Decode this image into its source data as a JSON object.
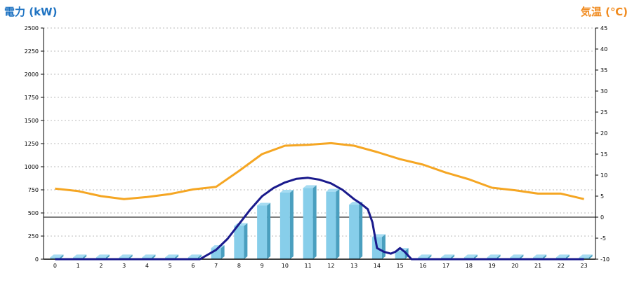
{
  "chart_data": {
    "type": "bar",
    "ylabel_left": "電力 (kW)",
    "ylabel_right": "気温 (℃)",
    "categories": [
      "0",
      "1",
      "2",
      "3",
      "4",
      "5",
      "6",
      "7",
      "8",
      "9",
      "10",
      "11",
      "12",
      "13",
      "14",
      "15",
      "16",
      "17",
      "18",
      "19",
      "20",
      "21",
      "22",
      "23"
    ],
    "y_left": {
      "min": 0,
      "max": 2500,
      "ticks": [
        "0",
        "250",
        "500",
        "750",
        "1000",
        "1250",
        "1500",
        "1750",
        "2000",
        "2250",
        "2500"
      ]
    },
    "y_right": {
      "min": -10,
      "max": 45,
      "ticks": [
        "-10",
        "-5",
        "0",
        "5",
        "10",
        "15",
        "20",
        "25",
        "30",
        "35",
        "40",
        "45"
      ]
    },
    "grid": "horizontal-dashed",
    "bars": {
      "axis": "left",
      "values": [
        20,
        20,
        20,
        20,
        20,
        20,
        20,
        120,
        360,
        580,
        720,
        770,
        730,
        590,
        240,
        90,
        20,
        20,
        20,
        20,
        20,
        20,
        20,
        20
      ]
    },
    "temperature": {
      "axis": "right",
      "x": [
        0,
        1,
        2,
        3,
        4,
        5,
        6,
        7,
        8,
        9,
        10,
        11,
        12,
        13,
        14,
        15,
        16,
        17,
        18,
        19,
        20,
        21,
        22,
        23
      ],
      "values": [
        6.8,
        6.2,
        5,
        4.3,
        4.8,
        5.5,
        6.6,
        7.2,
        11,
        15,
        17,
        17.2,
        17.6,
        17,
        15.5,
        13.8,
        12.5,
        10.6,
        9,
        7,
        6.4,
        5.6,
        5.6,
        4.3
      ]
    },
    "power_curve": {
      "axis": "left",
      "x": [
        0,
        6,
        6.3,
        7,
        7.5,
        8,
        8.5,
        9,
        9.5,
        10,
        10.5,
        11,
        11.5,
        12,
        12.5,
        13,
        13.3,
        13.6,
        13.8,
        14,
        14.3,
        14.6,
        14.8,
        15,
        15.2,
        15.5,
        16,
        23
      ],
      "values": [
        0,
        0,
        0,
        100,
        220,
        380,
        540,
        680,
        770,
        830,
        870,
        880,
        860,
        820,
        750,
        650,
        600,
        540,
        400,
        120,
        80,
        60,
        80,
        120,
        80,
        0,
        0,
        0
      ]
    },
    "colors": {
      "bar_front": "#87ceea",
      "bar_side": "#4a9fbf",
      "bar_top": "#a6dcf2",
      "temperature_line": "#f5a623",
      "power_line": "#1a1a8c",
      "left_label": "#1f73c2",
      "right_label": "#f08a1e",
      "grid": "#bbbbbb",
      "zero_line": "#000000"
    }
  }
}
